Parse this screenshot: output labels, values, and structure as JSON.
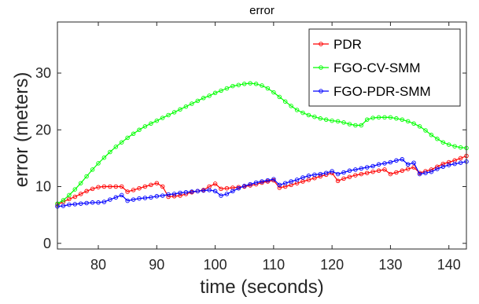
{
  "chart_data": {
    "type": "line",
    "title": "error",
    "xlabel": "time (seconds)",
    "ylabel": "error (meters)",
    "xlim": [
      73,
      143
    ],
    "ylim": [
      -1,
      39
    ],
    "xticks": [
      80,
      90,
      100,
      110,
      120,
      130,
      140
    ],
    "yticks": [
      0,
      10,
      20,
      30
    ],
    "grid": false,
    "legend_position": "top-right",
    "marker": "open-circle",
    "series": [
      {
        "name": "PDR",
        "color": "#ff0000",
        "x": [
          73,
          74,
          75,
          76,
          77,
          78,
          79,
          80,
          81,
          82,
          83,
          84,
          85,
          86,
          87,
          88,
          89,
          90,
          91,
          92,
          93,
          94,
          95,
          96,
          97,
          98,
          99,
          100,
          101,
          102,
          103,
          104,
          105,
          106,
          107,
          108,
          109,
          110,
          111,
          112,
          113,
          114,
          115,
          116,
          117,
          118,
          119,
          120,
          121,
          122,
          123,
          124,
          125,
          126,
          127,
          128,
          129,
          130,
          131,
          132,
          133,
          134,
          135,
          136,
          137,
          138,
          139,
          140,
          141,
          142,
          143
        ],
        "y": [
          6.8,
          7.3,
          7.8,
          8.2,
          8.7,
          9.2,
          9.6,
          9.9,
          10.0,
          10.0,
          10.0,
          10.0,
          9.1,
          9.4,
          9.7,
          10.0,
          10.3,
          10.6,
          10.0,
          8.2,
          8.3,
          8.4,
          8.7,
          9.0,
          9.2,
          9.4,
          10.0,
          10.5,
          9.6,
          9.7,
          9.8,
          9.9,
          10.0,
          10.2,
          10.4,
          10.7,
          10.9,
          11.1,
          9.8,
          10.0,
          10.3,
          10.6,
          10.9,
          11.2,
          11.5,
          11.8,
          12.1,
          12.4,
          11.0,
          11.4,
          11.7,
          12.0,
          12.2,
          12.4,
          12.6,
          12.8,
          13.0,
          12.2,
          12.5,
          12.8,
          13.1,
          13.4,
          12.4,
          12.7,
          13.0,
          13.5,
          14.0,
          14.3,
          14.6,
          15.0,
          15.4
        ]
      },
      {
        "name": "FGO-CV-SMM",
        "color": "#00ff00",
        "x": [
          73,
          74,
          75,
          76,
          77,
          78,
          79,
          80,
          81,
          82,
          83,
          84,
          85,
          86,
          87,
          88,
          89,
          90,
          91,
          92,
          93,
          94,
          95,
          96,
          97,
          98,
          99,
          100,
          101,
          102,
          103,
          104,
          105,
          106,
          107,
          108,
          109,
          110,
          111,
          112,
          113,
          114,
          115,
          116,
          117,
          118,
          119,
          120,
          121,
          122,
          123,
          124,
          125,
          126,
          127,
          128,
          129,
          130,
          131,
          132,
          133,
          134,
          135,
          136,
          137,
          138,
          139,
          140,
          141,
          142,
          143
        ],
        "y": [
          7.0,
          7.6,
          8.5,
          9.5,
          10.6,
          11.8,
          13.0,
          14.1,
          15.1,
          16.1,
          17.0,
          17.8,
          18.6,
          19.3,
          20.0,
          20.6,
          21.1,
          21.6,
          22.1,
          22.6,
          23.1,
          23.6,
          24.1,
          24.6,
          25.1,
          25.6,
          26.0,
          26.5,
          26.9,
          27.3,
          27.7,
          27.9,
          28.1,
          28.2,
          28.1,
          27.8,
          27.3,
          26.6,
          25.8,
          25.0,
          24.2,
          23.5,
          23.0,
          22.6,
          22.3,
          22.0,
          21.8,
          21.6,
          21.5,
          21.3,
          21.0,
          20.8,
          20.8,
          21.8,
          22.1,
          22.2,
          22.2,
          22.2,
          22.0,
          21.8,
          21.5,
          21.1,
          20.6,
          19.9,
          19.1,
          18.4,
          17.8,
          17.4,
          17.1,
          16.9,
          16.8
        ]
      },
      {
        "name": "FGO-PDR-SMM",
        "color": "#0000ff",
        "x": [
          73,
          74,
          75,
          76,
          77,
          78,
          79,
          80,
          81,
          82,
          83,
          84,
          85,
          86,
          87,
          88,
          89,
          90,
          91,
          92,
          93,
          94,
          95,
          96,
          97,
          98,
          99,
          100,
          101,
          102,
          103,
          104,
          105,
          106,
          107,
          108,
          109,
          110,
          111,
          112,
          113,
          114,
          115,
          116,
          117,
          118,
          119,
          120,
          121,
          122,
          123,
          124,
          125,
          126,
          127,
          128,
          129,
          130,
          131,
          132,
          133,
          134,
          135,
          136,
          137,
          138,
          139,
          140,
          141,
          142,
          143
        ],
        "y": [
          6.5,
          6.6,
          6.8,
          6.9,
          7.0,
          7.1,
          7.2,
          7.2,
          7.3,
          7.7,
          8.1,
          8.5,
          7.5,
          7.7,
          7.9,
          8.0,
          8.1,
          8.3,
          8.4,
          8.6,
          8.7,
          8.9,
          9.0,
          9.1,
          9.2,
          9.3,
          9.4,
          9.2,
          8.4,
          8.7,
          9.2,
          9.7,
          10.1,
          10.4,
          10.7,
          10.9,
          11.1,
          11.3,
          10.3,
          10.6,
          10.9,
          11.2,
          11.6,
          11.9,
          12.1,
          12.2,
          12.4,
          12.7,
          12.2,
          12.5,
          12.8,
          13.0,
          13.2,
          13.4,
          13.6,
          13.9,
          14.1,
          14.3,
          14.6,
          14.8,
          13.9,
          14.2,
          12.2,
          12.4,
          12.6,
          13.1,
          13.5,
          13.8,
          14.0,
          14.2,
          14.4
        ]
      }
    ]
  }
}
